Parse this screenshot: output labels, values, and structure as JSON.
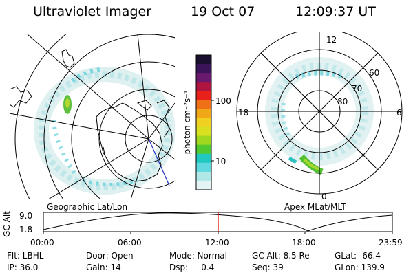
{
  "header": {
    "title": "Ultraviolet Imager",
    "date": "19 Oct 07",
    "time": "12:09:37 UT"
  },
  "colorbar": {
    "unit_label": "photon cm⁻²s⁻¹",
    "ticks": [
      "100",
      "10"
    ],
    "colors": [
      "#1a0f2e",
      "#3a1458",
      "#6a1a6e",
      "#b01440",
      "#e8221a",
      "#f07018",
      "#f0a818",
      "#f0d020",
      "#d8e020",
      "#a0d820",
      "#50c830",
      "#20c8c0",
      "#60d8e0",
      "#b0e8e8",
      "#e4f4f4"
    ]
  },
  "left_map": {
    "caption": "Geographic Lat/Lon"
  },
  "right_map": {
    "caption": "Apex MLat/MLT",
    "mlt_labels": {
      "top": "12",
      "left": "18",
      "right": "6",
      "bottom": "0"
    },
    "lat_labels": [
      "60",
      "70",
      "80"
    ]
  },
  "altitude_plot": {
    "ylabel": "GC Alt",
    "y_ticks": [
      "9.0",
      "1.8"
    ],
    "x_ticks": [
      "00:00",
      "06:00",
      "12:00",
      "18:00",
      "23:59"
    ],
    "marker_color": "#e00000"
  },
  "info": {
    "filter": "Flt: LBHL",
    "door": "Door: Open",
    "mode": "Mode: Normal",
    "gc_alt": "GC Alt: 8.5 Re",
    "glat": "GLat: -66.4",
    "ip": "IP: 36.0",
    "gain": "Gain: 14",
    "dsp": "Dsp:     0.4",
    "seq": "Seq: 39",
    "glon": "GLon: 139.9"
  }
}
